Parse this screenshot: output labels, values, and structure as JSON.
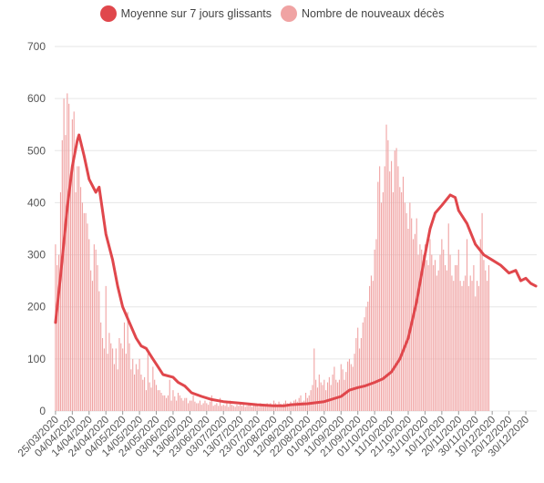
{
  "legend": {
    "line_label": "Moyenne sur 7 jours glissants",
    "bar_label": "Nombre de nouveaux décès"
  },
  "colors": {
    "line": "#e0474c",
    "bar": "#f0a3a3",
    "grid": "#e6e6e6",
    "axis_text": "#555555"
  },
  "chart_data": {
    "type": "bar",
    "start_date": "2020-03-25",
    "end_date": "2021-01-05",
    "y_ticks": [
      0,
      100,
      200,
      300,
      400,
      500,
      600,
      700
    ],
    "ylim": [
      0,
      700
    ],
    "grid": true,
    "legend_position": "top-center",
    "x_tick_labels": [
      "25/03/2020",
      "04/04/2020",
      "14/04/2020",
      "24/04/2020",
      "04/05/2020",
      "14/05/2020",
      "24/05/2020",
      "03/06/2020",
      "13/06/2020",
      "23/06/2020",
      "03/07/2020",
      "13/07/2020",
      "23/07/2020",
      "02/08/2020",
      "12/08/2020",
      "22/08/2020",
      "01/09/2020",
      "11/09/2020",
      "21/09/2020",
      "01/10/2020",
      "11/10/2020",
      "21/10/2020",
      "31/10/2020",
      "10/11/2020",
      "20/11/2020",
      "30/11/2020",
      "10/12/2020",
      "20/12/2020",
      "30/12/2020"
    ],
    "series": [
      {
        "name": "Moyenne sur 7 jours glissants",
        "kind": "line",
        "points": [
          [
            "2020-03-25",
            170
          ],
          [
            "2020-03-28",
            260
          ],
          [
            "2020-04-01",
            390
          ],
          [
            "2020-04-04",
            470
          ],
          [
            "2020-04-07",
            520
          ],
          [
            "2020-04-08",
            530
          ],
          [
            "2020-04-11",
            490
          ],
          [
            "2020-04-14",
            445
          ],
          [
            "2020-04-18",
            420
          ],
          [
            "2020-04-20",
            430
          ],
          [
            "2020-04-24",
            340
          ],
          [
            "2020-04-28",
            290
          ],
          [
            "2020-05-01",
            240
          ],
          [
            "2020-05-04",
            200
          ],
          [
            "2020-05-08",
            170
          ],
          [
            "2020-05-12",
            140
          ],
          [
            "2020-05-15",
            125
          ],
          [
            "2020-05-18",
            120
          ],
          [
            "2020-05-22",
            100
          ],
          [
            "2020-05-25",
            85
          ],
          [
            "2020-05-28",
            70
          ],
          [
            "2020-06-03",
            65
          ],
          [
            "2020-06-06",
            55
          ],
          [
            "2020-06-10",
            48
          ],
          [
            "2020-06-14",
            35
          ],
          [
            "2020-06-20",
            28
          ],
          [
            "2020-06-26",
            22
          ],
          [
            "2020-07-03",
            18
          ],
          [
            "2020-07-13",
            15
          ],
          [
            "2020-07-23",
            12
          ],
          [
            "2020-08-02",
            10
          ],
          [
            "2020-08-08",
            10
          ],
          [
            "2020-08-12",
            12
          ],
          [
            "2020-08-22",
            14
          ],
          [
            "2020-09-01",
            18
          ],
          [
            "2020-09-11",
            28
          ],
          [
            "2020-09-16",
            40
          ],
          [
            "2020-09-21",
            45
          ],
          [
            "2020-09-25",
            48
          ],
          [
            "2020-10-01",
            55
          ],
          [
            "2020-10-06",
            62
          ],
          [
            "2020-10-11",
            75
          ],
          [
            "2020-10-16",
            100
          ],
          [
            "2020-10-21",
            140
          ],
          [
            "2020-10-26",
            210
          ],
          [
            "2020-10-31",
            300
          ],
          [
            "2020-11-03",
            350
          ],
          [
            "2020-11-06",
            380
          ],
          [
            "2020-11-10",
            395
          ],
          [
            "2020-11-15",
            415
          ],
          [
            "2020-11-18",
            410
          ],
          [
            "2020-11-20",
            385
          ],
          [
            "2020-11-25",
            360
          ],
          [
            "2020-11-30",
            320
          ],
          [
            "2020-12-05",
            300
          ],
          [
            "2020-12-10",
            290
          ],
          [
            "2020-12-15",
            280
          ],
          [
            "2020-12-20",
            265
          ],
          [
            "2020-12-24",
            270
          ],
          [
            "2020-12-27",
            250
          ],
          [
            "2020-12-30",
            255
          ],
          [
            "2021-01-02",
            245
          ],
          [
            "2021-01-05",
            240
          ]
        ]
      },
      {
        "name": "Nombre de nouveaux décès",
        "kind": "bar",
        "values": [
          320,
          280,
          300,
          420,
          520,
          600,
          530,
          610,
          590,
          450,
          560,
          575,
          420,
          470,
          470,
          430,
          400,
          380,
          380,
          360,
          330,
          270,
          250,
          320,
          310,
          280,
          230,
          170,
          140,
          120,
          240,
          110,
          150,
          130,
          120,
          90,
          120,
          80,
          140,
          130,
          120,
          170,
          110,
          190,
          130,
          80,
          100,
          70,
          90,
          80,
          100,
          70,
          60,
          65,
          40,
          110,
          55,
          45,
          85,
          60,
          50,
          40,
          40,
          35,
          30,
          30,
          25,
          30,
          60,
          20,
          40,
          28,
          20,
          35,
          30,
          25,
          20,
          25,
          25,
          15,
          20,
          20,
          30,
          18,
          15,
          15,
          20,
          12,
          15,
          20,
          15,
          12,
          18,
          30,
          10,
          12,
          15,
          10,
          25,
          10,
          12,
          10,
          15,
          8,
          20,
          12,
          10,
          8,
          12,
          10,
          15,
          10,
          12,
          8,
          10,
          12,
          15,
          8,
          10,
          12,
          10,
          8,
          15,
          12,
          10,
          10,
          15,
          12,
          15,
          10,
          20,
          15,
          12,
          18,
          14,
          12,
          15,
          20,
          15,
          12,
          18,
          15,
          20,
          22,
          18,
          25,
          30,
          18,
          20,
          35,
          25,
          30,
          40,
          50,
          120,
          60,
          45,
          70,
          55,
          50,
          60,
          40,
          55,
          65,
          50,
          70,
          85,
          60,
          55,
          60,
          90,
          80,
          60,
          75,
          95,
          100,
          90,
          85,
          110,
          140,
          160,
          120,
          140,
          170,
          180,
          200,
          210,
          240,
          260,
          250,
          310,
          330,
          440,
          470,
          400,
          420,
          470,
          550,
          520,
          460,
          480,
          420,
          500,
          505,
          470,
          430,
          420,
          450,
          400,
          380,
          350,
          400,
          370,
          330,
          340,
          370,
          300,
          320,
          310,
          300,
          320,
          290,
          280,
          330,
          300,
          280,
          290,
          260,
          270,
          300,
          330,
          310,
          280,
          270,
          360,
          300,
          260,
          250,
          280,
          280,
          310,
          250,
          240,
          250,
          260,
          330,
          240,
          260,
          250,
          280,
          220,
          250,
          240,
          330,
          380,
          290,
          270,
          250,
          280
        ]
      }
    ]
  }
}
